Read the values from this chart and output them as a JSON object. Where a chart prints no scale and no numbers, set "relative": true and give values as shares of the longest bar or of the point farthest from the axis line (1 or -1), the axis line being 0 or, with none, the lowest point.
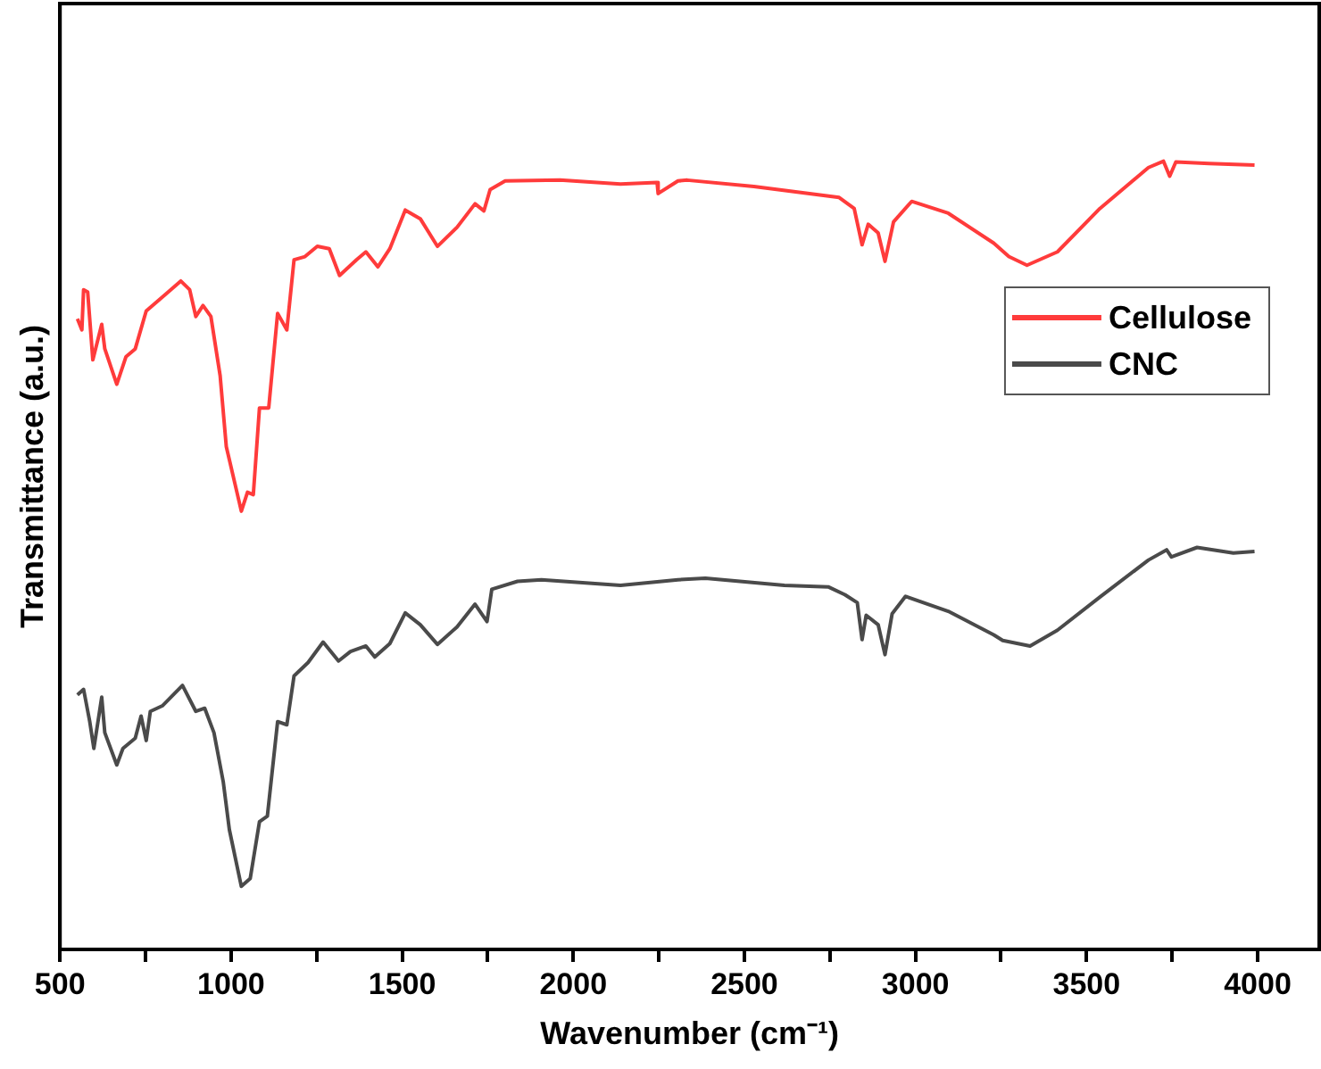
{
  "chart_data": {
    "type": "line",
    "relative": true,
    "xlabel": "Wavenumber (cm⁻¹)",
    "ylabel": "Transmittance (a.u.)",
    "xlim": [
      500,
      4180
    ],
    "xticks": [
      500,
      {
        "value": 750,
        "label": null
      },
      1000,
      {
        "value": 1250,
        "label": null
      },
      1500,
      {
        "value": 1750,
        "label": null
      },
      2000,
      {
        "value": 2250,
        "label": null
      },
      2500,
      {
        "value": 2750,
        "label": null
      },
      3000,
      {
        "value": 3250,
        "label": null
      },
      3500,
      {
        "value": 3750,
        "label": null
      },
      4000
    ],
    "tick_labels": "x",
    "grid": false,
    "legend": "right",
    "marker": "none",
    "line_style": "solid",
    "series": [
      {
        "name": "Cellulose",
        "color": "#ff3b3b",
        "x": [
          551,
          564,
          569,
          581,
          596,
          622,
          631,
          666,
          693,
          720,
          752,
          808,
          853,
          879,
          897,
          918,
          941,
          968,
          986,
          1030,
          1048,
          1065,
          1083,
          1110,
          1136,
          1163,
          1184,
          1216,
          1252,
          1287,
          1317,
          1367,
          1394,
          1429,
          1464,
          1509,
          1553,
          1603,
          1660,
          1713,
          1739,
          1757,
          1801,
          1961,
          2138,
          2245,
          2248,
          2306,
          2333,
          2528,
          2777,
          2821,
          2844,
          2862,
          2891,
          2911,
          2936,
          2989,
          3096,
          3229,
          3273,
          3326,
          3415,
          3539,
          3681,
          3725,
          3743,
          3761,
          3858,
          3991
        ],
        "values": [
          0.8,
          0.786,
          0.837,
          0.834,
          0.748,
          0.793,
          0.762,
          0.717,
          0.752,
          0.762,
          0.81,
          0.831,
          0.848,
          0.837,
          0.803,
          0.817,
          0.803,
          0.728,
          0.638,
          0.556,
          0.58,
          0.577,
          0.687,
          0.687,
          0.807,
          0.786,
          0.875,
          0.879,
          0.892,
          0.889,
          0.855,
          0.875,
          0.885,
          0.866,
          0.889,
          0.938,
          0.927,
          0.892,
          0.916,
          0.946,
          0.937,
          0.964,
          0.975,
          0.976,
          0.971,
          0.973,
          0.959,
          0.975,
          0.976,
          0.968,
          0.954,
          0.94,
          0.894,
          0.92,
          0.909,
          0.873,
          0.923,
          0.949,
          0.934,
          0.896,
          0.879,
          0.868,
          0.885,
          0.94,
          0.992,
          1,
          0.981,
          0.999,
          0.997,
          0.995
        ]
      },
      {
        "name": "CNC",
        "color": "#4a4a4a",
        "x": [
          551,
          569,
          587,
          599,
          622,
          631,
          666,
          684,
          720,
          737,
          752,
          764,
          799,
          858,
          897,
          923,
          950,
          977,
          995,
          1030,
          1056,
          1083,
          1106,
          1136,
          1163,
          1184,
          1225,
          1269,
          1314,
          1349,
          1394,
          1420,
          1464,
          1509,
          1553,
          1603,
          1660,
          1713,
          1748,
          1762,
          1837,
          1907,
          2138,
          2306,
          2386,
          2617,
          2745,
          2794,
          2830,
          2844,
          2856,
          2891,
          2911,
          2932,
          2971,
          3096,
          3229,
          3255,
          3335,
          3415,
          3539,
          3681,
          3734,
          3748,
          3823,
          3929,
          3991
        ],
        "values": [
          0.323,
          0.33,
          0.289,
          0.255,
          0.32,
          0.275,
          0.234,
          0.255,
          0.268,
          0.296,
          0.265,
          0.302,
          0.309,
          0.335,
          0.302,
          0.306,
          0.275,
          0.213,
          0.152,
          0.08,
          0.09,
          0.162,
          0.169,
          0.289,
          0.285,
          0.347,
          0.364,
          0.39,
          0.366,
          0.378,
          0.385,
          0.371,
          0.388,
          0.427,
          0.412,
          0.387,
          0.409,
          0.438,
          0.416,
          0.457,
          0.467,
          0.469,
          0.462,
          0.469,
          0.471,
          0.462,
          0.46,
          0.45,
          0.44,
          0.393,
          0.424,
          0.412,
          0.374,
          0.426,
          0.448,
          0.429,
          0.399,
          0.392,
          0.385,
          0.405,
          0.447,
          0.494,
          0.507,
          0.498,
          0.51,
          0.503,
          0.505
        ]
      }
    ]
  }
}
